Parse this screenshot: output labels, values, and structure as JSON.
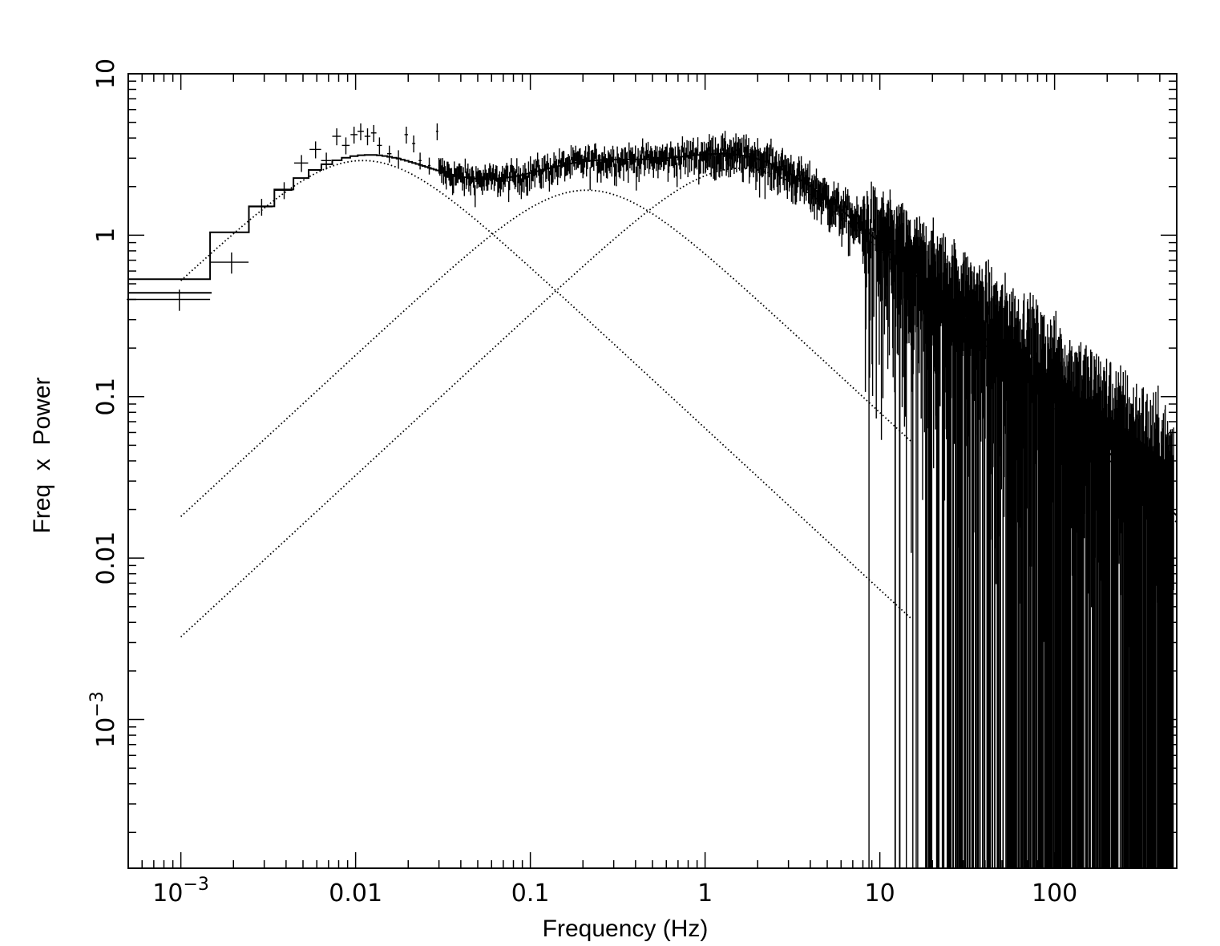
{
  "chart_data": {
    "type": "line",
    "xlabel": "Frequency (Hz)",
    "ylabel": "Freq  x  Power",
    "xscale": "log",
    "yscale": "log",
    "xlim": [
      0.0005,
      500
    ],
    "ylim": [
      0.00012,
      10
    ],
    "x_ticks": [
      {
        "value": 0.001,
        "base": "10",
        "exp": "−3"
      },
      {
        "value": 0.01,
        "label": "0.01"
      },
      {
        "value": 0.1,
        "label": "0.1"
      },
      {
        "value": 1,
        "label": "1"
      },
      {
        "value": 10,
        "label": "10"
      },
      {
        "value": 100,
        "label": "100"
      }
    ],
    "y_ticks": [
      {
        "value": 0.001,
        "base": "10",
        "exp": "−3"
      },
      {
        "value": 0.01,
        "label": "0.01"
      },
      {
        "value": 0.1,
        "label": "0.1"
      },
      {
        "value": 1,
        "label": "1"
      },
      {
        "value": 10,
        "label": "10"
      }
    ],
    "grid": false,
    "model_components": [
      {
        "style": "dotted",
        "peak_freq": 0.011,
        "peak_value": 2.9,
        "x_range": [
          0.001,
          15
        ]
      },
      {
        "style": "dotted",
        "peak_freq": 0.21,
        "peak_value": 1.9,
        "x_range": [
          0.001,
          15
        ]
      },
      {
        "style": "dotted",
        "peak_freq": 1.6,
        "peak_value": 2.6,
        "x_range": [
          0.001,
          500
        ]
      }
    ],
    "total_model": {
      "style": "solid histogram",
      "x_range": [
        0.0005,
        500
      ]
    },
    "data_points_low_freq": [
      {
        "x": 0.00098,
        "y": 0.4
      },
      {
        "x": 0.00195,
        "y": 0.68
      },
      {
        "x": 0.0029,
        "y": 1.5
      },
      {
        "x": 0.0039,
        "y": 1.9
      },
      {
        "x": 0.0049,
        "y": 2.8
      },
      {
        "x": 0.0059,
        "y": 3.4
      },
      {
        "x": 0.0068,
        "y": 2.9
      },
      {
        "x": 0.0078,
        "y": 4.1
      },
      {
        "x": 0.0088,
        "y": 3.6
      },
      {
        "x": 0.0098,
        "y": 4.2
      },
      {
        "x": 0.0107,
        "y": 4.4
      },
      {
        "x": 0.0117,
        "y": 4.1
      },
      {
        "x": 0.0127,
        "y": 4.3
      },
      {
        "x": 0.0137,
        "y": 3.6
      },
      {
        "x": 0.0156,
        "y": 3.2
      },
      {
        "x": 0.0176,
        "y": 3.0
      },
      {
        "x": 0.0195,
        "y": 4.2
      },
      {
        "x": 0.0215,
        "y": 3.7
      },
      {
        "x": 0.0234,
        "y": 2.9
      },
      {
        "x": 0.0264,
        "y": 2.7
      },
      {
        "x": 0.0293,
        "y": 4.4
      }
    ],
    "noise_note": "dense error bars from 0.02 Hz to 500 Hz around the total model; large scatter above 10 Hz"
  }
}
